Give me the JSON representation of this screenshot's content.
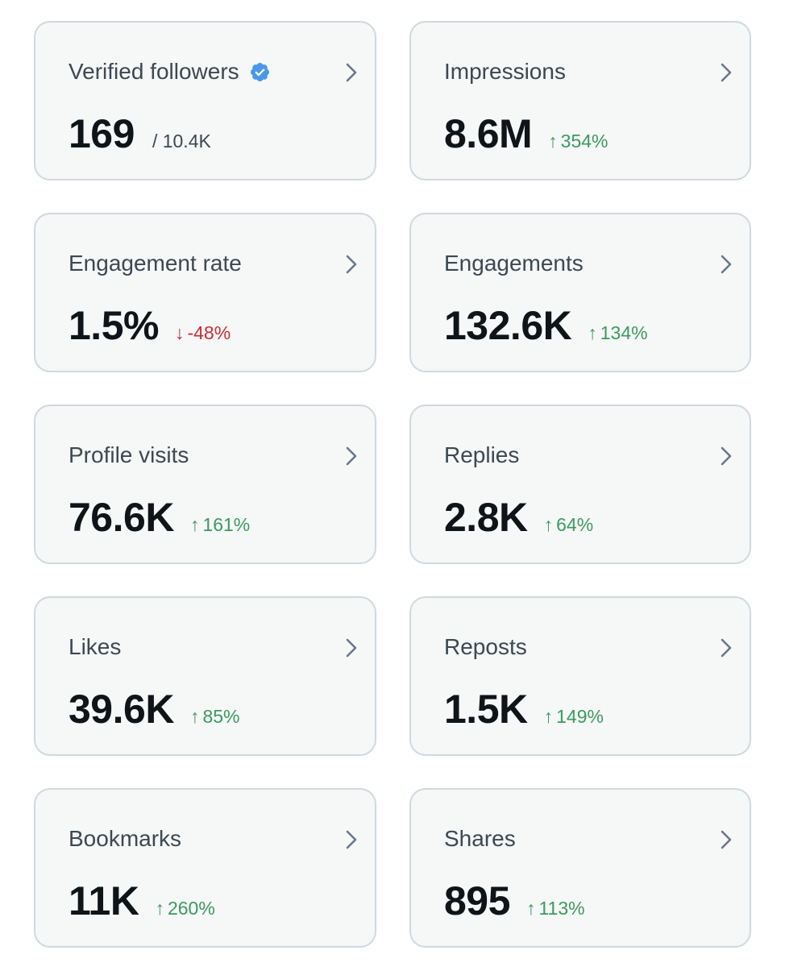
{
  "colors": {
    "card_background": "#f6f7f7",
    "card_border": "#cfd9de",
    "value_text": "#0f1419",
    "title_text": "#3d4852",
    "positive": "#3c9a5f",
    "negative": "#cb2c32",
    "verified_badge": "#4a99e9"
  },
  "cards": [
    {
      "title": "Verified followers",
      "icon": "verified-badge-icon",
      "value": "169",
      "sub": "/ 10.4K"
    },
    {
      "title": "Impressions",
      "value": "8.6M",
      "change": {
        "direction": "up",
        "arrow": "↑",
        "text": "354%"
      }
    },
    {
      "title": "Engagement rate",
      "value": "1.5%",
      "change": {
        "direction": "down",
        "arrow": "↓",
        "text": "-48%"
      }
    },
    {
      "title": "Engagements",
      "value": "132.6K",
      "change": {
        "direction": "up",
        "arrow": "↑",
        "text": "134%"
      }
    },
    {
      "title": "Profile visits",
      "value": "76.6K",
      "change": {
        "direction": "up",
        "arrow": "↑",
        "text": "161%"
      }
    },
    {
      "title": "Replies",
      "value": "2.8K",
      "change": {
        "direction": "up",
        "arrow": "↑",
        "text": "64%"
      }
    },
    {
      "title": "Likes",
      "value": "39.6K",
      "change": {
        "direction": "up",
        "arrow": "↑",
        "text": "85%"
      }
    },
    {
      "title": "Reposts",
      "value": "1.5K",
      "change": {
        "direction": "up",
        "arrow": "↑",
        "text": "149%"
      }
    },
    {
      "title": "Bookmarks",
      "value": "11K",
      "change": {
        "direction": "up",
        "arrow": "↑",
        "text": "260%"
      }
    },
    {
      "title": "Shares",
      "value": "895",
      "change": {
        "direction": "up",
        "arrow": "↑",
        "text": "113%"
      }
    }
  ]
}
